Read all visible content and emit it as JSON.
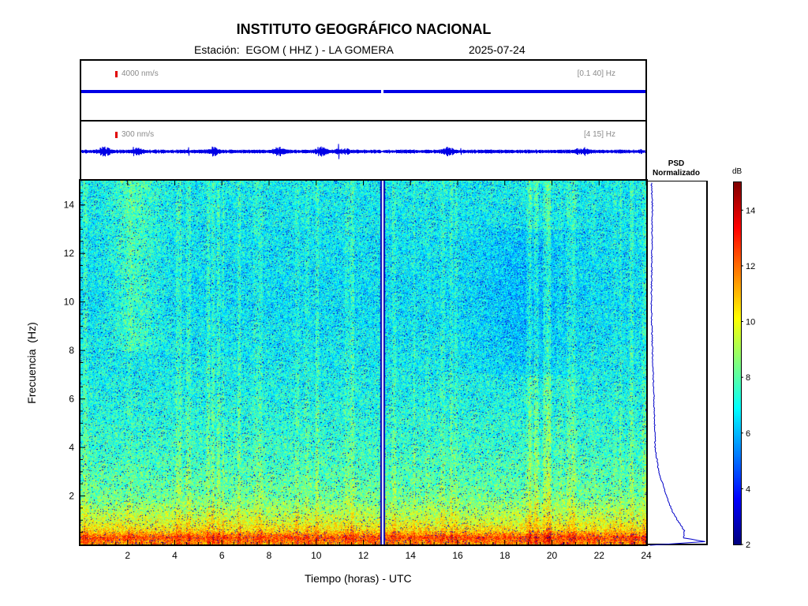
{
  "header": {
    "title": "INSTITUTO GEOGRÁFICO NACIONAL",
    "station": "Estación:  EGOM ( HHZ ) - LA GOMERA",
    "date": "2025-07-24"
  },
  "traces": [
    {
      "scale_label": "4000 nm/s",
      "band_label": "[0.1 40] Hz",
      "color": "#0000e6"
    },
    {
      "scale_label": "300 nm/s",
      "band_label": "[4 15] Hz",
      "color": "#0000e6"
    }
  ],
  "psd": {
    "title_line1": "PSD",
    "title_line2": "Normalizado"
  },
  "colorbar": {
    "unit": "dB"
  },
  "chart_data": {
    "type": "heatmap",
    "title": "",
    "xlabel": "Tiempo (horas) - UTC",
    "ylabel": "Frecuencia  (Hz)",
    "xlim": [
      0,
      24
    ],
    "ylim": [
      0,
      15
    ],
    "x_ticks": [
      2,
      4,
      6,
      8,
      10,
      12,
      14,
      16,
      18,
      20,
      22,
      24
    ],
    "y_ticks": [
      2,
      4,
      6,
      8,
      10,
      12,
      14
    ],
    "colorbar_range": [
      2,
      15
    ],
    "colorbar_ticks": [
      2,
      4,
      6,
      8,
      10,
      12,
      14
    ],
    "colormap": "jet",
    "data_gap_hours": 12.8,
    "spectrogram_profile_db": [
      {
        "f": 0.0,
        "db": 11.5
      },
      {
        "f": 0.3,
        "db": 12.5
      },
      {
        "f": 0.6,
        "db": 10.5
      },
      {
        "f": 1.0,
        "db": 9.6
      },
      {
        "f": 1.5,
        "db": 8.9
      },
      {
        "f": 2.0,
        "db": 8.3
      },
      {
        "f": 3.0,
        "db": 7.9
      },
      {
        "f": 4.0,
        "db": 7.6
      },
      {
        "f": 6.0,
        "db": 7.2
      },
      {
        "f": 8.0,
        "db": 6.9
      },
      {
        "f": 10.0,
        "db": 6.7
      },
      {
        "f": 12.0,
        "db": 6.8
      },
      {
        "f": 15.0,
        "db": 7.0
      }
    ],
    "psd_normalized": [
      {
        "f": 0.0,
        "v": 0.0
      },
      {
        "f": 0.15,
        "v": 1.0
      },
      {
        "f": 0.3,
        "v": 0.6
      },
      {
        "f": 0.6,
        "v": 0.62
      },
      {
        "f": 1.0,
        "v": 0.5
      },
      {
        "f": 1.5,
        "v": 0.38
      },
      {
        "f": 2.0,
        "v": 0.3
      },
      {
        "f": 3.0,
        "v": 0.16
      },
      {
        "f": 4.0,
        "v": 0.09
      },
      {
        "f": 6.0,
        "v": 0.07
      },
      {
        "f": 8.0,
        "v": 0.04
      },
      {
        "f": 10.0,
        "v": 0.02
      },
      {
        "f": 12.0,
        "v": 0.03
      },
      {
        "f": 14.0,
        "v": 0.04
      },
      {
        "f": 15.0,
        "v": 0.02
      }
    ]
  }
}
